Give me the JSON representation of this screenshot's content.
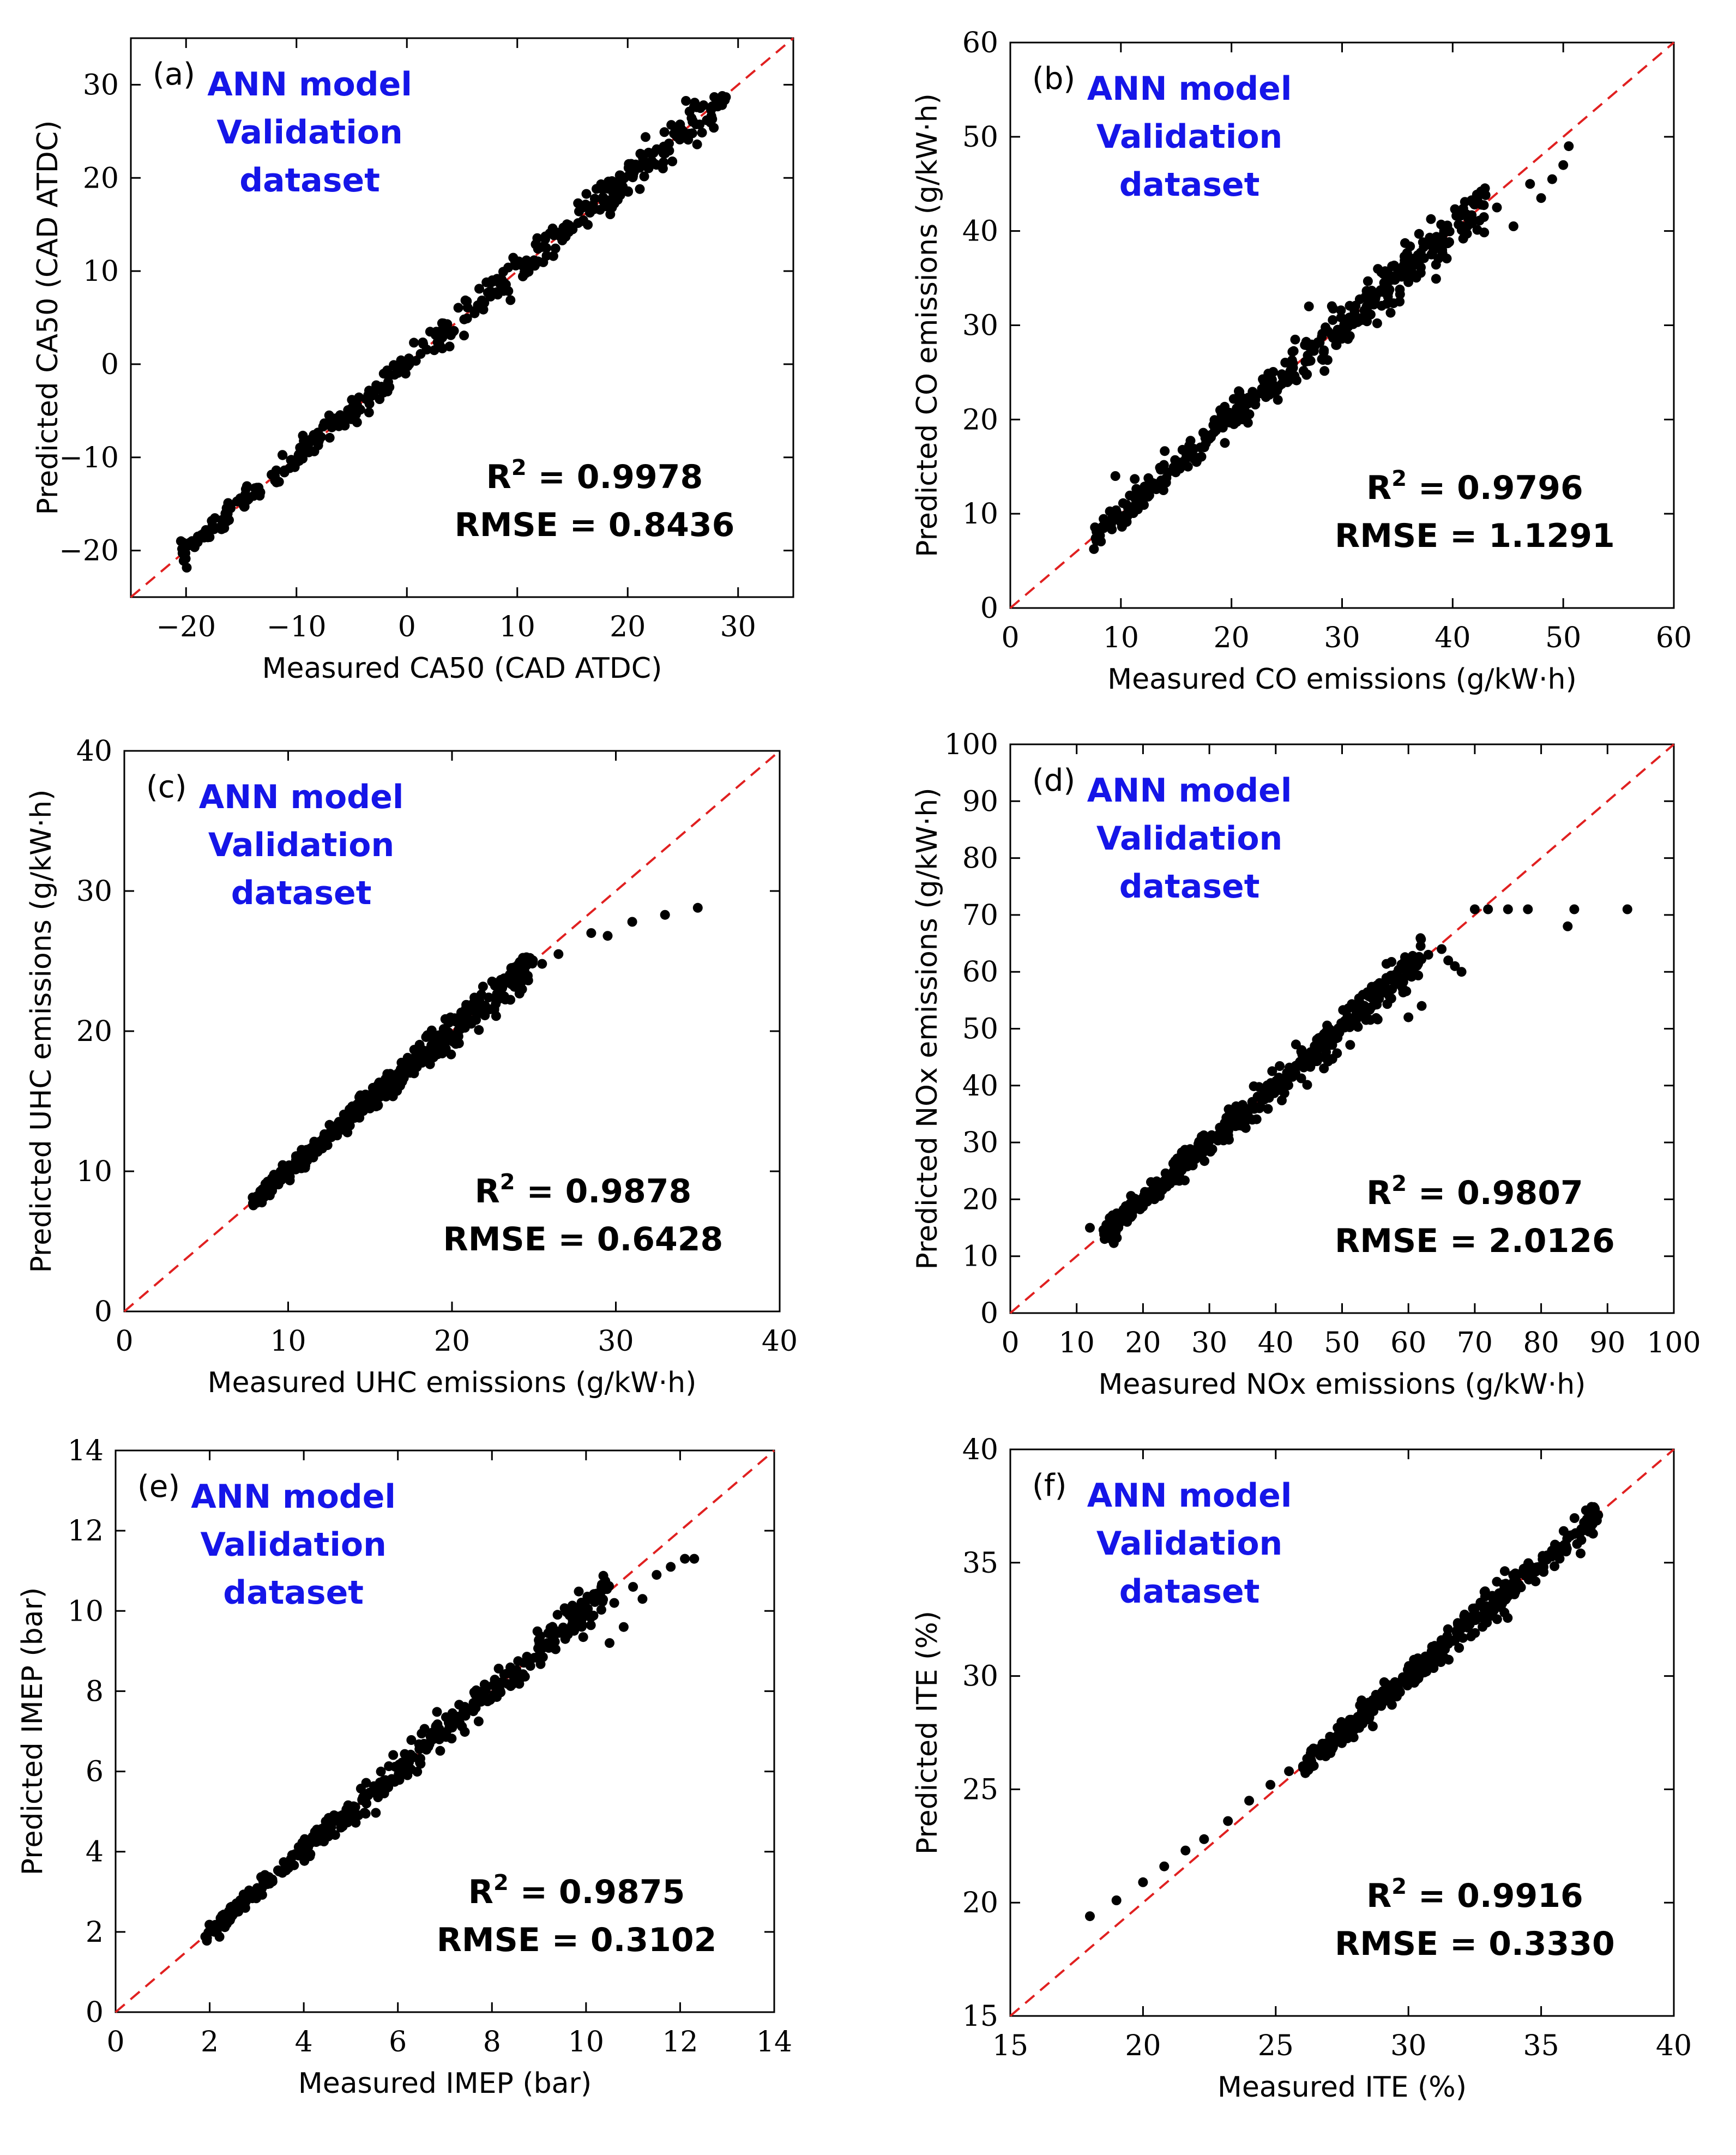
{
  "chart_data": [
    {
      "type": "scatter",
      "panel": "(a)",
      "xlabel": "Measured CA50 (CAD ATDC)",
      "ylabel": "Predicted CA50 (CAD ATDC)",
      "xlim": [
        -25,
        35
      ],
      "ylim": [
        -25,
        35
      ],
      "xticks": [
        -20,
        -10,
        0,
        10,
        20,
        30
      ],
      "yticks": [
        -20,
        -10,
        0,
        10,
        20,
        30
      ],
      "xtick_labels": [
        "−20",
        "−10",
        "0",
        "10",
        "20",
        "30"
      ],
      "ytick_labels": [
        "−20",
        "−10",
        "0",
        "10",
        "20",
        "30"
      ],
      "annotation_lines": [
        "ANN model",
        "Validation",
        "dataset"
      ],
      "r2_label": "R",
      "r2_sup": "2",
      "r2_value": " = 0.9978",
      "rmse_text": "RMSE = 0.8436",
      "range": [
        -20.5,
        29
      ],
      "noise": 0.9,
      "outliers": [],
      "reference_line": "y = x (red dashed)"
    },
    {
      "type": "scatter",
      "panel": "(b)",
      "xlabel": "Measured CO emissions (g/kW·h)",
      "ylabel": "Predicted CO emissions (g/kW·h)",
      "xlim": [
        0,
        60
      ],
      "ylim": [
        0,
        60
      ],
      "xticks": [
        0,
        10,
        20,
        30,
        40,
        50,
        60
      ],
      "yticks": [
        0,
        10,
        20,
        30,
        40,
        50,
        60
      ],
      "xtick_labels": [
        "0",
        "10",
        "20",
        "30",
        "40",
        "50",
        "60"
      ],
      "ytick_labels": [
        "0",
        "10",
        "20",
        "30",
        "40",
        "50",
        "60"
      ],
      "annotation_lines": [
        "ANN model",
        "Validation",
        "dataset"
      ],
      "r2_label": "R",
      "r2_sup": "2",
      "r2_value": " = 0.9796",
      "rmse_text": "RMSE = 1.1291",
      "range": [
        7.5,
        43
      ],
      "noise": 1.2,
      "outliers": [
        [
          44,
          42.5
        ],
        [
          45.5,
          40.5
        ],
        [
          47,
          45
        ],
        [
          48,
          43.5
        ],
        [
          49,
          45.5
        ],
        [
          50,
          47
        ],
        [
          50.5,
          49
        ],
        [
          9.5,
          14
        ],
        [
          27,
          32
        ]
      ],
      "reference_line": "y = x (red dashed)"
    },
    {
      "type": "scatter",
      "panel": "(c)",
      "xlabel": "Measured UHC emissions (g/kW·h)",
      "ylabel": "Predicted UHC emissions (g/kW·h)",
      "xlim": [
        0,
        40
      ],
      "ylim": [
        0,
        40
      ],
      "xticks": [
        0,
        10,
        20,
        30,
        40
      ],
      "yticks": [
        0,
        10,
        20,
        30,
        40
      ],
      "xtick_labels": [
        "0",
        "10",
        "20",
        "30",
        "40"
      ],
      "ytick_labels": [
        "0",
        "10",
        "20",
        "30",
        "40"
      ],
      "annotation_lines": [
        "ANN model",
        "Validation",
        "dataset"
      ],
      "r2_label": "R",
      "r2_sup": "2",
      "r2_value": " = 0.9878",
      "rmse_text": "RMSE = 0.6428",
      "range": [
        7.8,
        25
      ],
      "noise": 0.55,
      "outliers": [
        [
          25.5,
          24.8
        ],
        [
          26.5,
          25.5
        ],
        [
          28.5,
          27
        ],
        [
          29.5,
          26.8
        ],
        [
          31,
          27.8
        ],
        [
          33,
          28.3
        ],
        [
          35,
          28.8
        ]
      ],
      "reference_line": "y = x (red dashed)"
    },
    {
      "type": "scatter",
      "panel": "(d)",
      "xlabel": "Measured NOx emissions (g/kW·h)",
      "ylabel": "Predicted NOx emissions (g/kW·h)",
      "xlim": [
        0,
        100
      ],
      "ylim": [
        0,
        100
      ],
      "xticks": [
        0,
        10,
        20,
        30,
        40,
        50,
        60,
        70,
        80,
        90,
        100
      ],
      "yticks": [
        0,
        10,
        20,
        30,
        40,
        50,
        60,
        70,
        80,
        90,
        100
      ],
      "xtick_labels": [
        "0",
        "10",
        "20",
        "30",
        "40",
        "50",
        "60",
        "70",
        "80",
        "90",
        "100"
      ],
      "ytick_labels": [
        "0",
        "10",
        "20",
        "30",
        "40",
        "50",
        "60",
        "70",
        "80",
        "90",
        "100"
      ],
      "annotation_lines": [
        "ANN model",
        "Validation",
        "dataset"
      ],
      "r2_label": "R",
      "r2_sup": "2",
      "r2_value": " = 0.9807",
      "rmse_text": "RMSE = 2.0126",
      "range": [
        14,
        62
      ],
      "noise": 1.6,
      "outliers": [
        [
          12,
          15
        ],
        [
          63,
          63
        ],
        [
          65,
          64
        ],
        [
          66,
          62
        ],
        [
          67,
          61
        ],
        [
          68,
          60
        ],
        [
          62,
          54
        ],
        [
          60,
          52
        ],
        [
          70,
          71
        ],
        [
          72,
          71
        ],
        [
          75,
          71
        ],
        [
          78,
          71
        ],
        [
          84,
          68
        ],
        [
          85,
          71
        ],
        [
          93,
          71
        ]
      ],
      "reference_line": "y = x (red dashed)"
    },
    {
      "type": "scatter",
      "panel": "(e)",
      "xlabel": "Measured IMEP (bar)",
      "ylabel": "Predicted IMEP (bar)",
      "xlim": [
        0,
        14
      ],
      "ylim": [
        0,
        14
      ],
      "xticks": [
        0,
        2,
        4,
        6,
        8,
        10,
        12,
        14
      ],
      "yticks": [
        0,
        2,
        4,
        6,
        8,
        10,
        12,
        14
      ],
      "xtick_labels": [
        "0",
        "2",
        "4",
        "6",
        "8",
        "10",
        "12",
        "14"
      ],
      "ytick_labels": [
        "0",
        "2",
        "4",
        "6",
        "8",
        "10",
        "12",
        "14"
      ],
      "annotation_lines": [
        "ANN model",
        "Validation",
        "dataset"
      ],
      "r2_label": "R",
      "r2_sup": "2",
      "r2_value": " = 0.9875",
      "rmse_text": "RMSE = 0.3102",
      "range": [
        1.9,
        10.5
      ],
      "noise": 0.22,
      "outliers": [
        [
          10.6,
          10.2
        ],
        [
          10.8,
          9.6
        ],
        [
          11,
          10.6
        ],
        [
          11.2,
          10.3
        ],
        [
          11.5,
          10.9
        ],
        [
          11.8,
          11.1
        ],
        [
          12.1,
          11.3
        ],
        [
          12.3,
          11.3
        ],
        [
          10.5,
          9.2
        ]
      ],
      "reference_line": "y = x (red dashed)"
    },
    {
      "type": "scatter",
      "panel": "(f)",
      "xlabel": "Measured ITE (%)",
      "ylabel": "Predicted ITE (%)",
      "xlim": [
        15,
        40
      ],
      "ylim": [
        15,
        40
      ],
      "xticks": [
        15,
        20,
        25,
        30,
        35,
        40
      ],
      "yticks": [
        15,
        20,
        25,
        30,
        35,
        40
      ],
      "xtick_labels": [
        "15",
        "20",
        "25",
        "30",
        "35",
        "40"
      ],
      "ytick_labels": [
        "15",
        "20",
        "25",
        "30",
        "35",
        "40"
      ],
      "annotation_lines": [
        "ANN model",
        "Validation",
        "dataset"
      ],
      "r2_label": "R",
      "r2_sup": "2",
      "r2_value": " = 0.9916",
      "rmse_text": "RMSE = 0.3330",
      "range": [
        26,
        37.2
      ],
      "noise": 0.35,
      "outliers": [
        [
          18,
          19.4
        ],
        [
          19,
          20.1
        ],
        [
          20,
          20.9
        ],
        [
          20.8,
          21.6
        ],
        [
          21.6,
          22.3
        ],
        [
          22.3,
          22.8
        ],
        [
          23.2,
          23.6
        ],
        [
          24,
          24.5
        ],
        [
          24.8,
          25.2
        ],
        [
          25.5,
          25.8
        ]
      ],
      "reference_line": "y = x (red dashed)"
    }
  ]
}
